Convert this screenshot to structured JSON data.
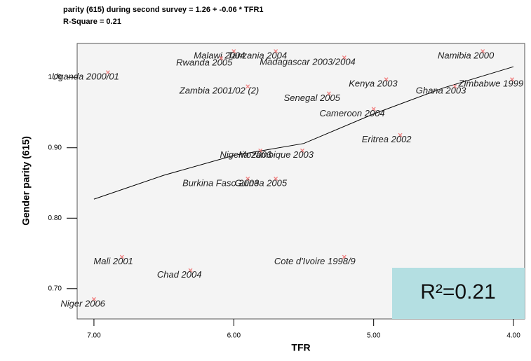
{
  "chart_data": {
    "type": "scatter",
    "title": [
      "parity (615) during second survey = 1.26 + -0.06 * TFR1",
      "R-Square = 0.21"
    ],
    "x_label": "TFR",
    "y_label": "Gender parity (615)",
    "annotation": "R²=0.21",
    "xlim": [
      7.12,
      3.92
    ],
    "ylim": [
      0.657,
      1.048
    ],
    "xticks": [
      {
        "value": 7,
        "label": "7.00"
      },
      {
        "value": 6,
        "label": "6.00"
      },
      {
        "value": 5,
        "label": "5.00"
      },
      {
        "value": 4,
        "label": "4.00"
      }
    ],
    "yticks": [
      {
        "value": 0.7,
        "label": "0.70"
      },
      {
        "value": 0.8,
        "label": "0.80"
      },
      {
        "value": 0.9,
        "label": "0.90"
      },
      {
        "value": 1,
        "label": "1.00"
      }
    ],
    "marker_color": "#f08080",
    "labels": [
      "Uganda 2000/01",
      "Malawi 2004",
      "Tanzania 2004",
      "Rwanda 2005",
      "Madagascar 2003/2004",
      "Namibia 2000",
      "Zambia 2001/02 (2)",
      "Kenya 2003",
      "Zimbabwe 1999",
      "Senegal 2005",
      "Ghana 2003",
      "Cameroon 2004",
      "Eritrea 2002",
      "Nigeria 2003",
      "Mozambique 2003",
      "Burkina Faso 2003",
      "Guinea 2005",
      "Mali 2001",
      "Chad 2004",
      "Cote d'Ivoire 1998/9",
      "Niger 2006"
    ],
    "x": [
      6.9,
      6.0,
      5.7,
      6.09,
      5.21,
      4.22,
      5.9,
      4.91,
      4.01,
      5.32,
      4.42,
      5.0,
      4.81,
      5.81,
      5.51,
      5.9,
      5.7,
      6.8,
      6.31,
      5.21,
      7.0
    ],
    "values": [
      1.007,
      1.037,
      1.037,
      1.027,
      1.028,
      1.037,
      0.987,
      0.997,
      0.997,
      0.977,
      0.987,
      0.955,
      0.918,
      0.896,
      0.896,
      0.856,
      0.856,
      0.745,
      0.726,
      0.745,
      0.685
    ],
    "fit_line": {
      "x": [
        7,
        6.5,
        6,
        5.5,
        5,
        4.5,
        4
      ],
      "values": [
        0.827,
        0.861,
        0.889,
        0.906,
        0.948,
        0.985,
        1.015
      ]
    }
  }
}
